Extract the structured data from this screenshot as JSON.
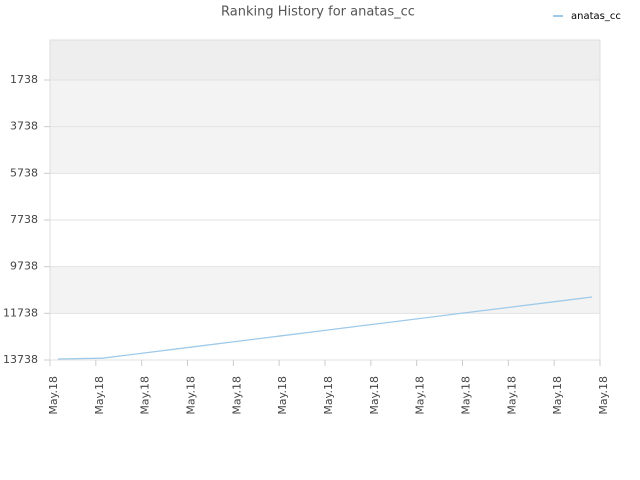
{
  "chart_data": {
    "type": "line",
    "title": "Ranking History for anatas_cc",
    "categories": [
      "May.18",
      "May.18",
      "May.18",
      "May.18",
      "May.18",
      "May.18",
      "May.18",
      "May.18",
      "May.18",
      "May.18",
      "May.18",
      "May.18",
      "May.18"
    ],
    "series": [
      {
        "name": "anatas_cc",
        "color": "#9ecae9",
        "values": [
          13695,
          13660,
          13421,
          13183,
          12944,
          12706,
          12467,
          12229,
          11991,
          11752,
          11514,
          11276,
          11038
        ]
      }
    ],
    "ylim": [
      13738,
      24
    ],
    "yticks": [
      1738,
      3738,
      5738,
      7738,
      9738,
      11738,
      13738
    ],
    "grid": true,
    "legend": "top-right"
  }
}
